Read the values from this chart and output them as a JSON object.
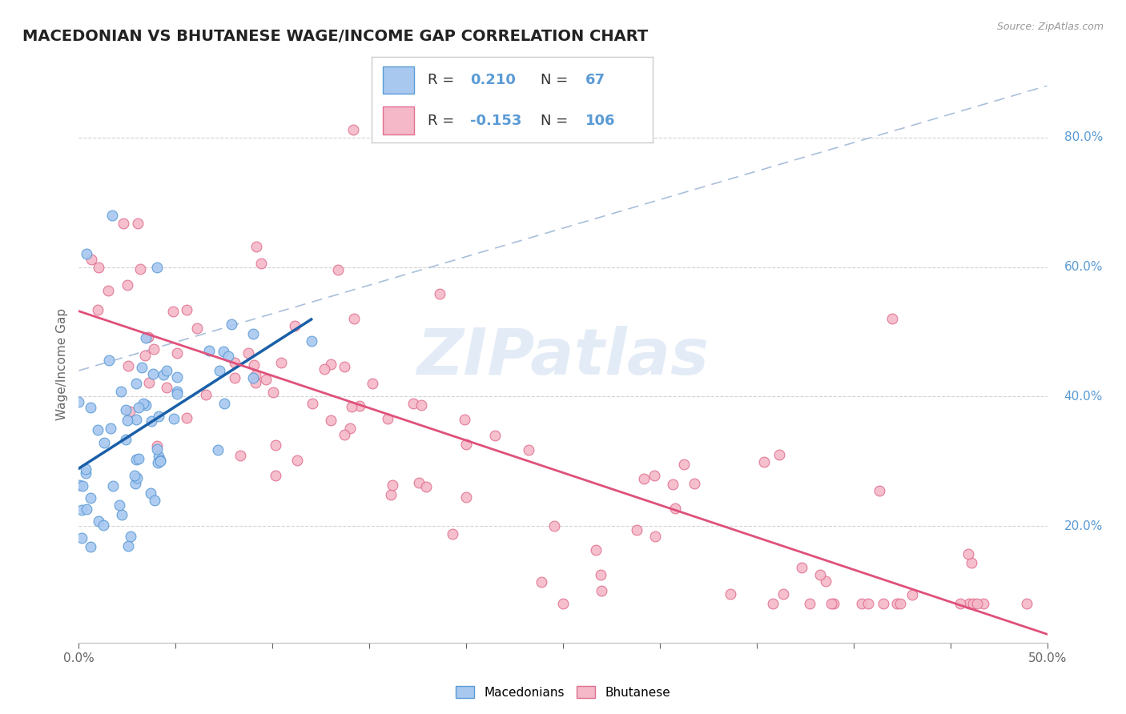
{
  "title": "MACEDONIAN VS BHUTANESE WAGE/INCOME GAP CORRELATION CHART",
  "source": "Source: ZipAtlas.com",
  "ylabel": "Wage/Income Gap",
  "xlim": [
    0.0,
    0.5
  ],
  "ylim": [
    0.02,
    0.88
  ],
  "x_ticks": [
    0.0,
    0.05,
    0.1,
    0.15,
    0.2,
    0.25,
    0.3,
    0.35,
    0.4,
    0.45,
    0.5
  ],
  "y_ticks_right": [
    0.2,
    0.4,
    0.6,
    0.8
  ],
  "y_tick_labels_right": [
    "20.0%",
    "40.0%",
    "60.0%",
    "80.0%"
  ],
  "mac_color": "#a8c8f0",
  "mac_color_dark": "#5b9bd5",
  "mac_line_color": "#1a5fa8",
  "bhu_color": "#f4b8c8",
  "bhu_color_dark": "#e07090",
  "bhu_line_color": "#e0507a",
  "ref_line_color": "#a0b8d8",
  "mac_R": 0.21,
  "mac_N": 67,
  "bhu_R": -0.153,
  "bhu_N": 106,
  "legend_label_mac": "Macedonians",
  "legend_label_bhu": "Bhutanese",
  "background_color": "#ffffff",
  "grid_color": "#c8c8c8",
  "title_color": "#222222",
  "source_color": "#999999",
  "title_fontsize": 14,
  "label_fontsize": 11,
  "tick_fontsize": 11,
  "legend_fontsize": 13,
  "watermark_color": "#ccddf0",
  "axis_label_color": "#5b9bd5",
  "text_color": "#333333"
}
